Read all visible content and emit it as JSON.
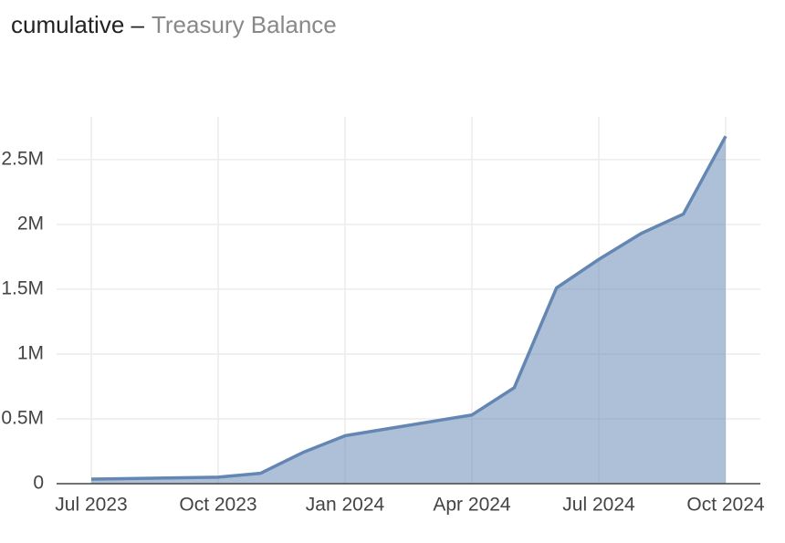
{
  "chart_data": {
    "type": "area",
    "title": "cumulative –",
    "subtitle": "Treasury Balance",
    "x": [
      "2023-07",
      "2023-10",
      "2023-11",
      "2023-12",
      "2024-01",
      "2024-04",
      "2024-05",
      "2024-06",
      "2024-07",
      "2024-08",
      "2024-09",
      "2024-10"
    ],
    "series": [
      {
        "name": "Treasury Balance",
        "color": "#6386b3",
        "values": [
          35000,
          50000,
          80000,
          240000,
          370000,
          530000,
          740000,
          1510000,
          1730000,
          1930000,
          2080000,
          2680000
        ]
      }
    ],
    "xlim": [
      "2023-07",
      "2024-10"
    ],
    "xticks": [
      {
        "value": "2023-07",
        "label": "Jul 2023"
      },
      {
        "value": "2023-10",
        "label": "Oct 2023"
      },
      {
        "value": "2024-01",
        "label": "Jan 2024"
      },
      {
        "value": "2024-04",
        "label": "Apr 2024"
      },
      {
        "value": "2024-07",
        "label": "Jul 2024"
      },
      {
        "value": "2024-10",
        "label": "Oct 2024"
      }
    ],
    "ylim": [
      0,
      2830000
    ],
    "yticks": [
      0,
      {
        "value": 500000,
        "label": "0.5M"
      },
      {
        "value": 1000000,
        "label": "1M"
      },
      {
        "value": 1500000,
        "label": "1.5M"
      },
      {
        "value": 2000000,
        "label": "2M"
      },
      {
        "value": 2500000,
        "label": "2.5M"
      }
    ],
    "grid": true
  }
}
